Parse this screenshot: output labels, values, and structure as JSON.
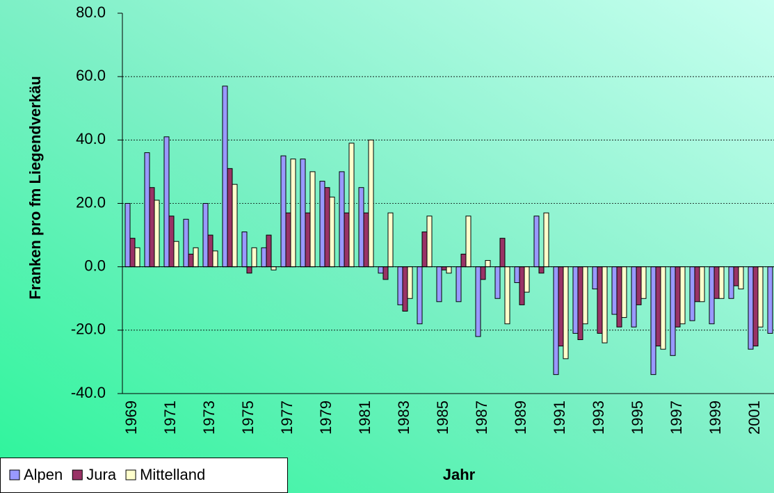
{
  "chart_data": {
    "type": "bar",
    "ylabel": "Franken pro fm Liegendverkäu",
    "xlabel": "Jahr",
    "categories": [
      "1969",
      null,
      "1971",
      null,
      "1973",
      null,
      "1975",
      null,
      "1977",
      null,
      "1979",
      null,
      "1981",
      null,
      "1983",
      null,
      "1985",
      null,
      "1987",
      null,
      "1989",
      null,
      "1991",
      null,
      "1993",
      null,
      "1995",
      null,
      "1997",
      null,
      "1999",
      null,
      "2001",
      null
    ],
    "series": [
      {
        "name": "Alpen",
        "color": "#9999ff",
        "values": [
          20,
          36,
          41,
          15,
          20,
          57,
          11,
          6,
          35,
          34,
          27,
          30,
          25,
          -2,
          -12,
          -18,
          -11,
          -11,
          -22,
          -10,
          -5,
          16,
          -34,
          -21,
          -7,
          -15,
          -19,
          -34,
          -28,
          -17,
          -18,
          -10,
          -26,
          -21
        ]
      },
      {
        "name": "Jura",
        "color": "#993366",
        "values": [
          9,
          25,
          16,
          4,
          10,
          31,
          -2,
          10,
          17,
          17,
          25,
          17,
          17,
          -4,
          -14,
          11,
          -1,
          4,
          -4,
          9,
          -12,
          -2,
          -25,
          -23,
          -21,
          -19,
          -12,
          -25,
          -19,
          -11,
          -10,
          -6,
          -25,
          null
        ]
      },
      {
        "name": "Mittelland",
        "color": "#ffffcc",
        "values": [
          6,
          21,
          8,
          6,
          5,
          26,
          6,
          -1,
          34,
          30,
          22,
          39,
          40,
          17,
          -10,
          16,
          -2,
          16,
          2,
          -18,
          -8,
          17,
          -29,
          -18,
          -24,
          -16,
          -10,
          -26,
          -18,
          -11,
          -10,
          -7,
          -19,
          null
        ]
      }
    ],
    "ylim": [
      -40,
      80
    ],
    "yticks": [
      {
        "value": -40,
        "label": "-40.0"
      },
      {
        "value": -20,
        "label": "-20.0"
      },
      {
        "value": 0,
        "label": "0.0"
      },
      {
        "value": 20,
        "label": "20.0"
      },
      {
        "value": 40,
        "label": "40.0"
      },
      {
        "value": 60,
        "label": "60.0"
      },
      {
        "value": 80,
        "label": "80.0"
      }
    ],
    "grid": true,
    "legend": "bottom-left"
  }
}
